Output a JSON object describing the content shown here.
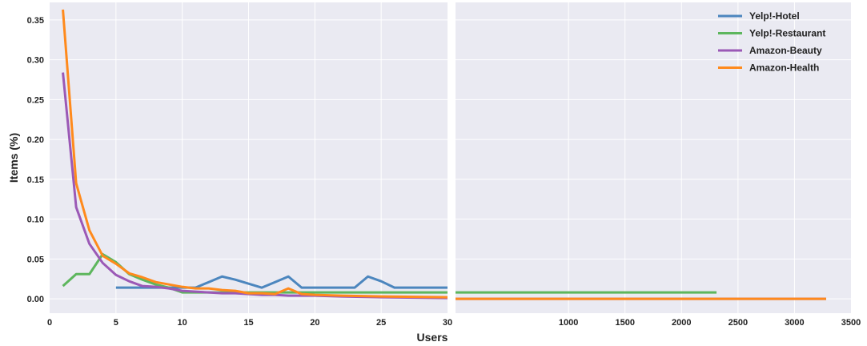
{
  "chart_data": {
    "type": "line",
    "xlabel": "Users",
    "ylabel": "Items (%)",
    "grid": true,
    "legend_placement": "top-right",
    "ylim": [
      -0.018,
      0.372
    ],
    "yticks": [
      0.0,
      0.05,
      0.1,
      0.15,
      0.2,
      0.25,
      0.3,
      0.35
    ],
    "ytick_labels": [
      "0.00",
      "0.05",
      "0.10",
      "0.15",
      "0.20",
      "0.25",
      "0.30",
      "0.35"
    ],
    "panels": [
      {
        "xlim": [
          0,
          30
        ],
        "xticks": [
          0,
          5,
          10,
          15,
          20,
          25,
          30
        ],
        "xtick_labels": [
          "0",
          "5",
          "10",
          "15",
          "20",
          "25",
          "30"
        ]
      },
      {
        "xlim": [
          0,
          3500
        ],
        "xticks": [
          1000,
          1500,
          2000,
          2500,
          3000,
          3500
        ],
        "xtick_labels": [
          "1000",
          "1500",
          "2000",
          "2500",
          "3000",
          "3500"
        ]
      }
    ],
    "series": [
      {
        "name": "Yelp!-Hotel",
        "color": "#4c86be",
        "panel1": [
          [
            5,
            0.014
          ],
          [
            6,
            0.014
          ],
          [
            7,
            0.014
          ],
          [
            8,
            0.014
          ],
          [
            9,
            0.014
          ],
          [
            10,
            0.014
          ],
          [
            11,
            0.014
          ],
          [
            12,
            0.021
          ],
          [
            13,
            0.028
          ],
          [
            14,
            0.024
          ],
          [
            15,
            0.019
          ],
          [
            16,
            0.014
          ],
          [
            17,
            0.021
          ],
          [
            18,
            0.028
          ],
          [
            19,
            0.014
          ],
          [
            20,
            0.014
          ],
          [
            21,
            0.014
          ],
          [
            22,
            0.014
          ],
          [
            23,
            0.014
          ],
          [
            24,
            0.028
          ],
          [
            25,
            0.022
          ],
          [
            26,
            0.014
          ],
          [
            27,
            0.014
          ],
          [
            28,
            0.014
          ],
          [
            29,
            0.014
          ],
          [
            30,
            0.014
          ]
        ],
        "panel2": []
      },
      {
        "name": "Yelp!-Restaurant",
        "color": "#5db65d",
        "panel1": [
          [
            1,
            0.016
          ],
          [
            2,
            0.031
          ],
          [
            3,
            0.031
          ],
          [
            4,
            0.056
          ],
          [
            5,
            0.046
          ],
          [
            6,
            0.031
          ],
          [
            7,
            0.024
          ],
          [
            8,
            0.018
          ],
          [
            9,
            0.014
          ],
          [
            10,
            0.008
          ],
          [
            11,
            0.008
          ],
          [
            12,
            0.008
          ],
          [
            13,
            0.008
          ],
          [
            14,
            0.008
          ],
          [
            15,
            0.008
          ],
          [
            16,
            0.008
          ],
          [
            17,
            0.008
          ],
          [
            18,
            0.008
          ],
          [
            19,
            0.008
          ],
          [
            20,
            0.008
          ],
          [
            25,
            0.008
          ],
          [
            30,
            0.008
          ]
        ],
        "panel2": [
          [
            0,
            0.008
          ],
          [
            2310,
            0.008
          ]
        ]
      },
      {
        "name": "Amazon-Beauty",
        "color": "#9b59b6",
        "panel1": [
          [
            1,
            0.284
          ],
          [
            2,
            0.115
          ],
          [
            3,
            0.069
          ],
          [
            4,
            0.045
          ],
          [
            5,
            0.03
          ],
          [
            6,
            0.022
          ],
          [
            7,
            0.016
          ],
          [
            8,
            0.015
          ],
          [
            9,
            0.013
          ],
          [
            10,
            0.01
          ],
          [
            11,
            0.009
          ],
          [
            12,
            0.008
          ],
          [
            13,
            0.007
          ],
          [
            14,
            0.007
          ],
          [
            15,
            0.006
          ],
          [
            16,
            0.005
          ],
          [
            17,
            0.005
          ],
          [
            18,
            0.004
          ],
          [
            19,
            0.004
          ],
          [
            20,
            0.004
          ],
          [
            22,
            0.003
          ],
          [
            25,
            0.002
          ],
          [
            30,
            0.001
          ]
        ],
        "panel2": [
          [
            0,
            0.0
          ],
          [
            3280,
            0.0
          ]
        ]
      },
      {
        "name": "Amazon-Health",
        "color": "#ff8a1c",
        "panel1": [
          [
            1,
            0.363
          ],
          [
            2,
            0.145
          ],
          [
            3,
            0.086
          ],
          [
            4,
            0.054
          ],
          [
            5,
            0.044
          ],
          [
            6,
            0.032
          ],
          [
            7,
            0.027
          ],
          [
            8,
            0.021
          ],
          [
            9,
            0.018
          ],
          [
            10,
            0.015
          ],
          [
            11,
            0.013
          ],
          [
            12,
            0.013
          ],
          [
            13,
            0.011
          ],
          [
            14,
            0.01
          ],
          [
            15,
            0.007
          ],
          [
            16,
            0.007
          ],
          [
            17,
            0.006
          ],
          [
            18,
            0.013
          ],
          [
            19,
            0.006
          ],
          [
            20,
            0.005
          ],
          [
            22,
            0.004
          ],
          [
            25,
            0.003
          ],
          [
            30,
            0.002
          ]
        ],
        "panel2": [
          [
            0,
            0.0
          ],
          [
            3280,
            0.0
          ]
        ]
      }
    ]
  }
}
